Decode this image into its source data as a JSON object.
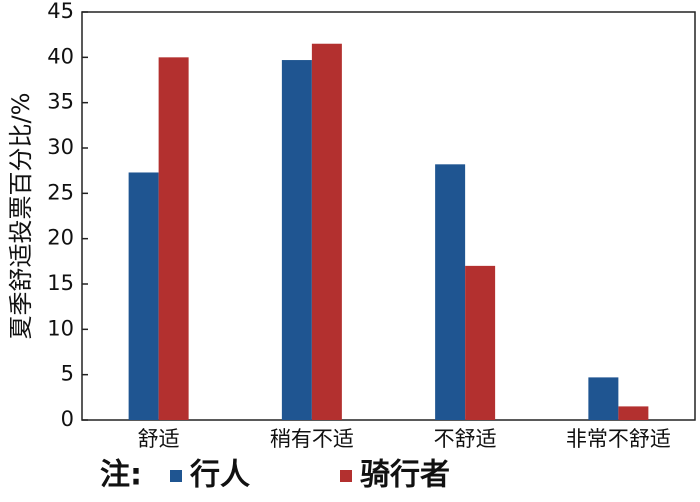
{
  "chart_data": {
    "type": "bar",
    "y_label": "夏季舒适投票百分比/%",
    "categories": [
      "舒适",
      "稍有不适",
      "不舒适",
      "非常不舒适"
    ],
    "series": [
      {
        "name": "行人",
        "color": "#1f5591",
        "values": [
          27.3,
          39.7,
          28.2,
          4.7
        ]
      },
      {
        "name": "骑行者",
        "color": "#b3302f",
        "values": [
          40,
          41.5,
          17,
          1.5
        ]
      }
    ],
    "legend_title": "注:",
    "ylim": [
      0,
      45
    ],
    "yticks": [
      0,
      5,
      10,
      15,
      20,
      25,
      30,
      35,
      40,
      45
    ],
    "grid": false
  }
}
